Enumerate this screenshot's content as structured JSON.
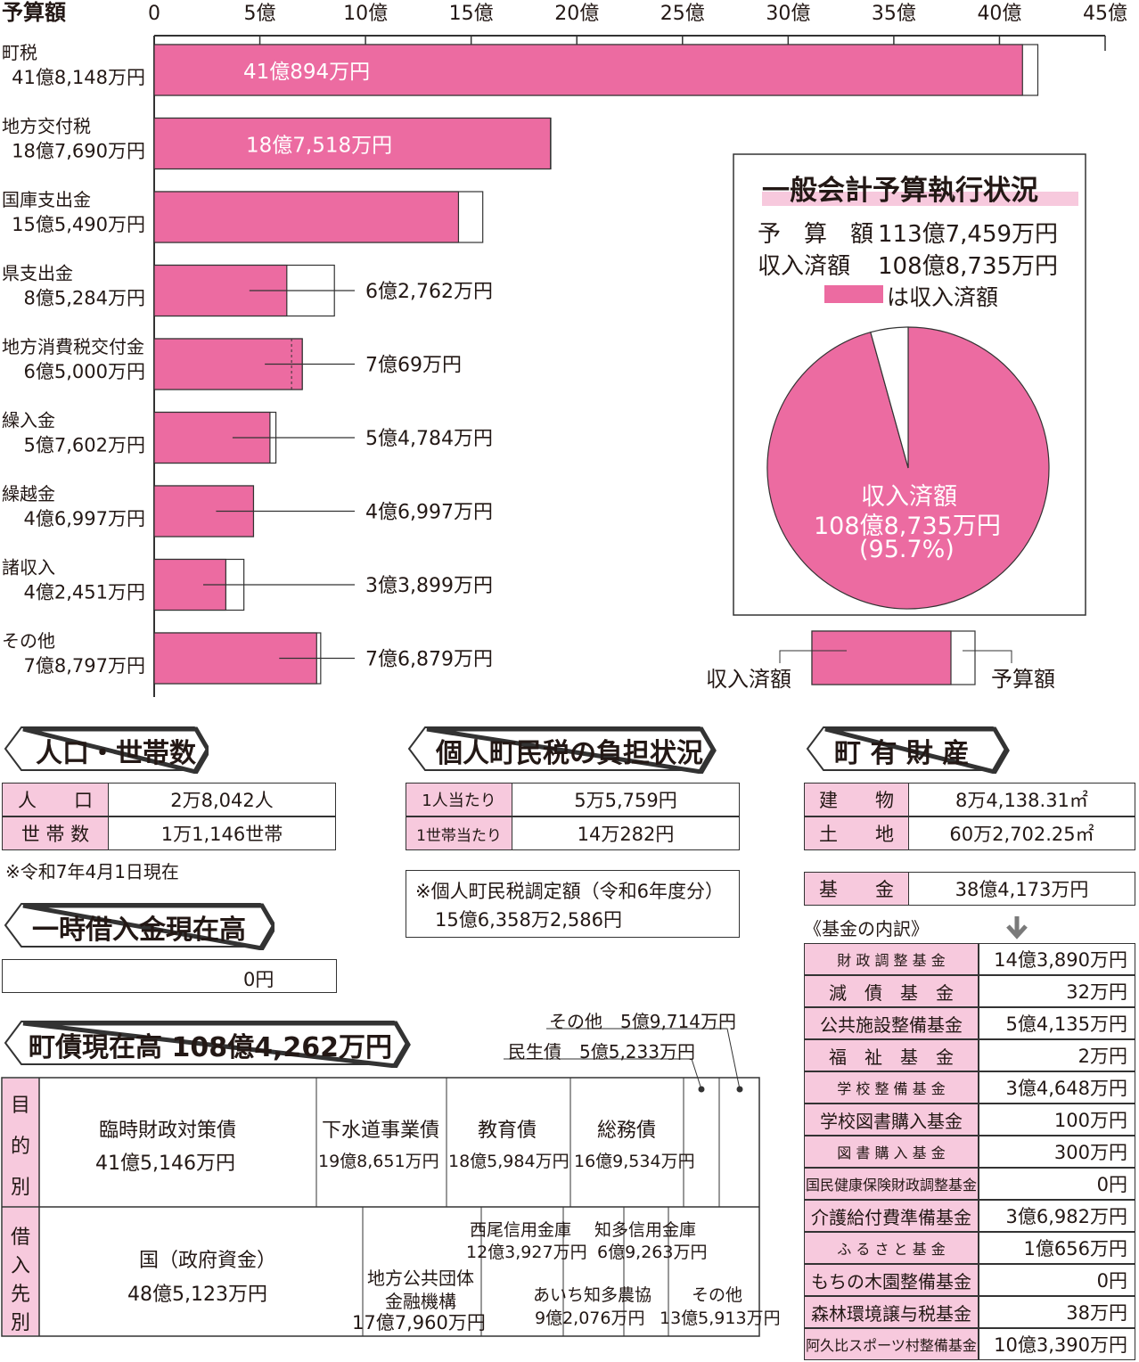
{
  "chart_data": [
    {
      "type": "bar",
      "orientation": "horizontal",
      "axis_title": "予算額",
      "xlim": [
        0,
        45
      ],
      "tick_labels": [
        "0",
        "5億",
        "10億",
        "15億",
        "20億",
        "25億",
        "30億",
        "35億",
        "40億",
        "45億"
      ],
      "categories": [
        {
          "name": "町税",
          "budget_label": "41億8,148万円",
          "received_label": "41億894万円",
          "budget": 41.8148,
          "received": 41.0894,
          "label_inside": true
        },
        {
          "name": "地方交付税",
          "budget_label": "18億7,690万円",
          "received_label": "18億7,518万円",
          "budget": 18.769,
          "received": 18.7518,
          "label_inside": true
        },
        {
          "name": "国庫支出金",
          "budget_label": "15億5,490万円",
          "received_label": "",
          "budget": 15.549,
          "received": 14.4,
          "label_inside": false
        },
        {
          "name": "県支出金",
          "budget_label": "8億5,284万円",
          "received_label": "6億2,762万円",
          "budget": 8.5284,
          "received": 6.2762,
          "label_inside": false
        },
        {
          "name": "地方消費税交付金",
          "budget_label": "6億5,000万円",
          "received_label": "7億69万円",
          "budget": 6.5,
          "received": 7.0069,
          "label_inside": false,
          "dashed": true
        },
        {
          "name": "繰入金",
          "budget_label": "5億7,602万円",
          "received_label": "5億4,784万円",
          "budget": 5.7602,
          "received": 5.4784,
          "label_inside": false
        },
        {
          "name": "繰越金",
          "budget_label": "4億6,997万円",
          "received_label": "4億6,997万円",
          "budget": 4.6997,
          "received": 4.6997,
          "label_inside": false
        },
        {
          "name": "諸収入",
          "budget_label": "4億2,451万円",
          "received_label": "3億3,899万円",
          "budget": 4.2451,
          "received": 3.3899,
          "label_inside": false
        },
        {
          "name": "その他",
          "budget_label": "7億8,797万円",
          "received_label": "7億6,879万円",
          "budget": 7.8797,
          "received": 7.6879,
          "label_inside": false
        }
      ],
      "legend": {
        "received": "収入済額",
        "budget": "予算額"
      }
    },
    {
      "type": "pie",
      "title": "一般会計予算執行状況",
      "budget_name": "予　算　額",
      "budget_value": "113億7,459万円",
      "received_name": "収入済額",
      "received_value": "108億8,735万円",
      "legend_text": "は収入済額",
      "slices": [
        {
          "name": "収入済額",
          "value": 95.7,
          "color": "#ec6ba1"
        },
        {
          "name": "未収",
          "value": 4.3,
          "color": "#ffffff"
        }
      ],
      "slice_label": {
        "name": "収入済額",
        "value": "108億8,735万円",
        "pct": "(95.7%)"
      }
    }
  ],
  "population": {
    "title": "人口・世帯数",
    "rows": [
      {
        "label": "人　　口",
        "value": "2万8,042人"
      },
      {
        "label": "世 帯 数",
        "value": "1万1,146世帯"
      }
    ],
    "note": "※令和7年4月1日現在"
  },
  "loan": {
    "title": "一時借入金現在高",
    "value": "0円"
  },
  "tax": {
    "title": "個人町民税の負担状況",
    "rows": [
      {
        "label": "1人当たり",
        "value": "5万5,759円"
      },
      {
        "label": "1世帯当たり",
        "value": "14万282円"
      }
    ],
    "note_line1": "※個人町民税調定額（令和6年度分）",
    "note_line2": "15億6,358万2,586円"
  },
  "property": {
    "title": "町 有 財 産",
    "rows": [
      {
        "label": "建　　物",
        "value": "8万4,138.31㎡"
      },
      {
        "label": "土　　地",
        "value": "60万2,702.25㎡"
      }
    ],
    "fund_label": "基　　金",
    "fund_value": "38億4,173万円",
    "breakdown_label": "《基金の内訳》",
    "funds": [
      {
        "name": "財 政 調 整 基 金",
        "value": "14億3,890万円"
      },
      {
        "name": "減　債　基　金",
        "value": "32万円"
      },
      {
        "name": "公共施設整備基金",
        "value": "5億4,135万円"
      },
      {
        "name": "福　祉　基　金",
        "value": "2万円"
      },
      {
        "name": "学 校 整 備 基 金",
        "value": "3億4,648万円"
      },
      {
        "name": "学校図書購入基金",
        "value": "100万円"
      },
      {
        "name": "図 書 購 入 基 金",
        "value": "300万円"
      },
      {
        "name": "国民健康保険財政調整基金",
        "value": "0円"
      },
      {
        "name": "介護給付費準備基金",
        "value": "3億6,982万円"
      },
      {
        "name": "ふ る さ と 基 金",
        "value": "1億656万円"
      },
      {
        "name": "もちの木園整備基金",
        "value": "0円"
      },
      {
        "name": "森林環境譲与税基金",
        "value": "38万円"
      },
      {
        "name": "阿久比スポーツ村整備基金",
        "value": "10億3,390万円"
      }
    ]
  },
  "debt": {
    "title": "町債現在高 108億4,262万円",
    "purpose_label": [
      "目",
      "的",
      "別"
    ],
    "lender_label": [
      "借",
      "入",
      "先",
      "別"
    ],
    "purpose": [
      {
        "name": "臨時財政対策債",
        "value": "41億5,146万円"
      },
      {
        "name": "下水道事業債",
        "value": "19億8,651万円"
      },
      {
        "name": "教育債",
        "value": "18億5,984万円"
      },
      {
        "name": "総務債",
        "value": "16億9,534万円"
      }
    ],
    "callout_other": {
      "name": "その他",
      "value": "5億9,714万円"
    },
    "callout_welfare": {
      "name": "民生債",
      "value": "5億5,233万円"
    },
    "lenders": [
      {
        "name": "国（政府資金）",
        "value": "48億5,123万円"
      },
      {
        "name": "地方公共団体\n金融機構",
        "value": "17億7,960万円"
      },
      {
        "name": "西尾信用金庫",
        "value": "12億3,927万円"
      },
      {
        "name": "あいち知多農協",
        "value": "9億2,076万円"
      },
      {
        "name": "知多信用金庫",
        "value": "6億9,263万円"
      },
      {
        "name": "その他",
        "value": "13億5,913万円"
      }
    ]
  }
}
